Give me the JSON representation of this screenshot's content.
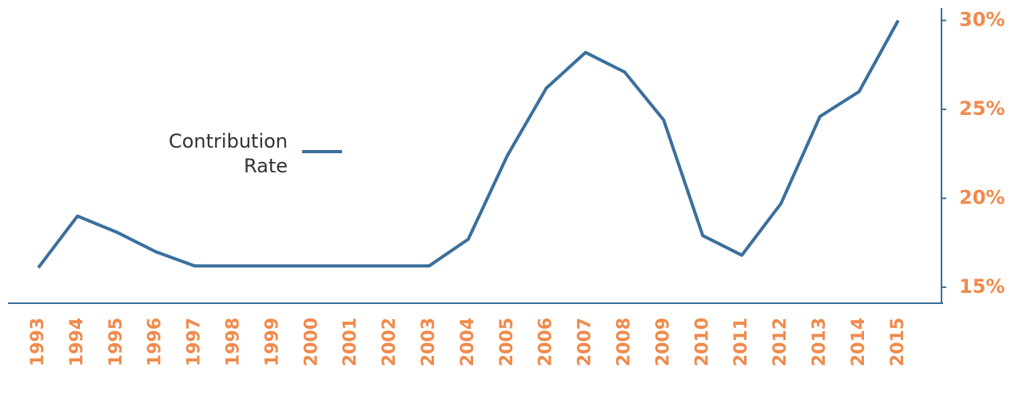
{
  "chart_data": {
    "type": "line",
    "categories": [
      "1993",
      "1994",
      "1995",
      "1996",
      "1997",
      "1998",
      "1999",
      "2000",
      "2001",
      "2002",
      "2003",
      "2004",
      "2005",
      "2006",
      "2007",
      "2008",
      "2009",
      "2010",
      "2011",
      "2012",
      "2013",
      "2014",
      "2015"
    ],
    "series": [
      {
        "name": "Contribution Rate",
        "color": "#3b6f9c",
        "values": [
          16.1,
          19.0,
          18.1,
          17.0,
          16.2,
          16.2,
          16.2,
          16.2,
          16.2,
          16.2,
          16.2,
          17.7,
          22.4,
          26.2,
          28.2,
          27.1,
          24.4,
          17.9,
          16.8,
          19.7,
          24.6,
          26.0,
          30.0
        ]
      }
    ],
    "ylim": [
      14.1,
      30.7
    ],
    "yticks": [
      {
        "value": 15,
        "label": "15%"
      },
      {
        "value": 20,
        "label": "20%"
      },
      {
        "value": 25,
        "label": "25%"
      },
      {
        "value": 30,
        "label": "30%"
      }
    ],
    "tick_color": "#f08a4b",
    "grid": false
  }
}
